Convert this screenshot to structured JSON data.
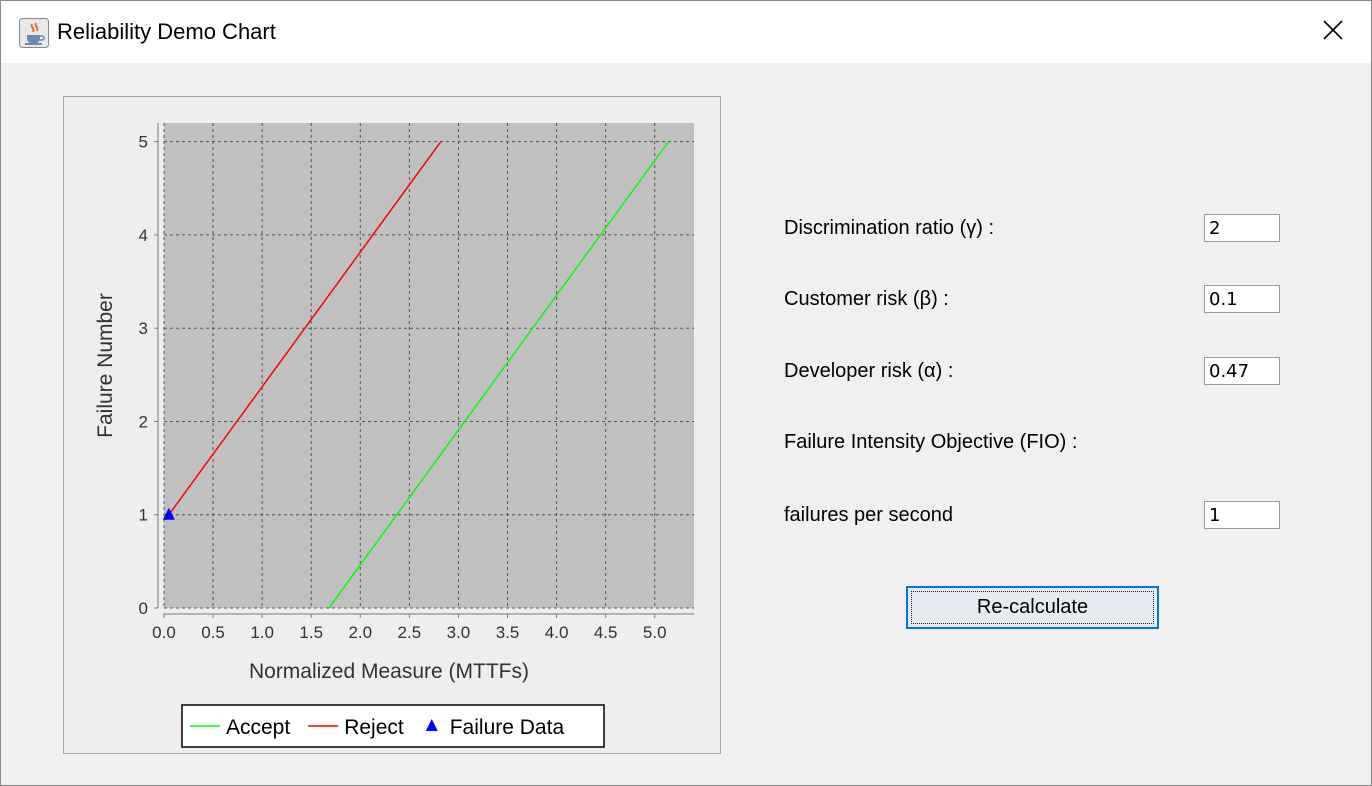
{
  "window": {
    "title": "Reliability Demo Chart",
    "app_icon": "java-coffee-cup-icon",
    "close_icon": "close-icon"
  },
  "chart_data": {
    "type": "line",
    "title": "",
    "xlabel": "Normalized Measure (MTTFs)",
    "ylabel": "Failure Number",
    "xlim": [
      0,
      5.4
    ],
    "ylim": [
      0,
      5.2
    ],
    "x_ticks": [
      "0.0",
      "0.5",
      "1.0",
      "1.5",
      "2.0",
      "2.5",
      "3.0",
      "3.5",
      "4.0",
      "4.5",
      "5.0"
    ],
    "y_ticks": [
      "0",
      "1",
      "2",
      "3",
      "4",
      "5"
    ],
    "grid": true,
    "plot_background": "#c0c0c0",
    "legend_position": "bottom",
    "series": [
      {
        "name": "Accept",
        "color": "#00ff00",
        "x": [
          1.68,
          5.14
        ],
        "y": [
          0,
          5
        ]
      },
      {
        "name": "Reject",
        "color": "#ff0000",
        "x": [
          0.05,
          2.82
        ],
        "y": [
          1,
          5
        ]
      },
      {
        "name": "Failure Data",
        "color": "#0000ff",
        "marker": "triangle",
        "x": [
          0.05
        ],
        "y": [
          1
        ]
      }
    ]
  },
  "form": {
    "discrimination_label": "Discrimination ratio (γ) :",
    "discrimination_value": "2",
    "customer_label": "Customer risk (β) :",
    "customer_value": "0.1",
    "developer_label": "Developer risk (α) :",
    "developer_value": "0.47",
    "fio_label": "Failure Intensity Objective (FIO) :",
    "fps_label": "failures per second",
    "fps_value": "1",
    "recalc_label": "Re-calculate"
  }
}
